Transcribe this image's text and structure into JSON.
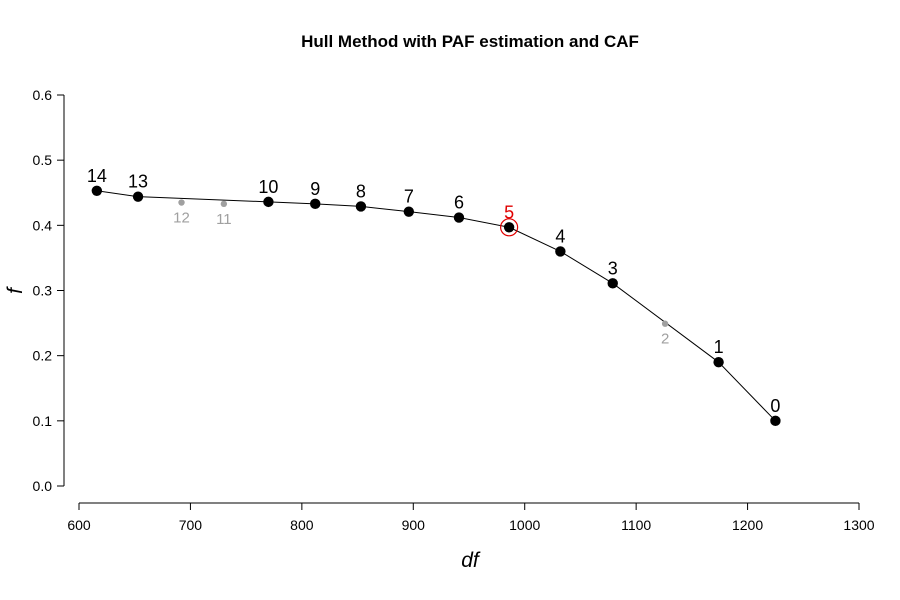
{
  "chart_data": {
    "type": "scatter",
    "title": "Hull Method with PAF estimation and CAF",
    "xlabel": "df",
    "ylabel": "f",
    "xlim": [
      600,
      1300
    ],
    "ylim": [
      0.0,
      0.6
    ],
    "x_ticks": [
      "600",
      "700",
      "800",
      "900",
      "1000",
      "1100",
      "1200",
      "1300"
    ],
    "y_ticks": [
      "0.0",
      "0.1",
      "0.2",
      "0.3",
      "0.4",
      "0.5",
      "0.6"
    ],
    "grid": false,
    "hull_points": [
      {
        "label": "14",
        "x": 616,
        "y": 0.453
      },
      {
        "label": "13",
        "x": 653,
        "y": 0.444
      },
      {
        "label": "10",
        "x": 770,
        "y": 0.436
      },
      {
        "label": "9",
        "x": 812,
        "y": 0.433
      },
      {
        "label": "8",
        "x": 853,
        "y": 0.429
      },
      {
        "label": "7",
        "x": 896,
        "y": 0.421
      },
      {
        "label": "6",
        "x": 941,
        "y": 0.412
      },
      {
        "label": "5",
        "x": 986,
        "y": 0.397
      },
      {
        "label": "4",
        "x": 1032,
        "y": 0.36
      },
      {
        "label": "3",
        "x": 1079,
        "y": 0.311
      },
      {
        "label": "1",
        "x": 1174,
        "y": 0.19
      },
      {
        "label": "0",
        "x": 1225,
        "y": 0.1
      }
    ],
    "off_hull_points": [
      {
        "label": "12",
        "x": 692,
        "y": 0.435
      },
      {
        "label": "11",
        "x": 730,
        "y": 0.433
      },
      {
        "label": "2",
        "x": 1126,
        "y": 0.249
      }
    ],
    "selected_label": "5",
    "colors": {
      "hull": "#000000",
      "off_hull": "#a0a0a0",
      "selected": "#e00000"
    }
  }
}
